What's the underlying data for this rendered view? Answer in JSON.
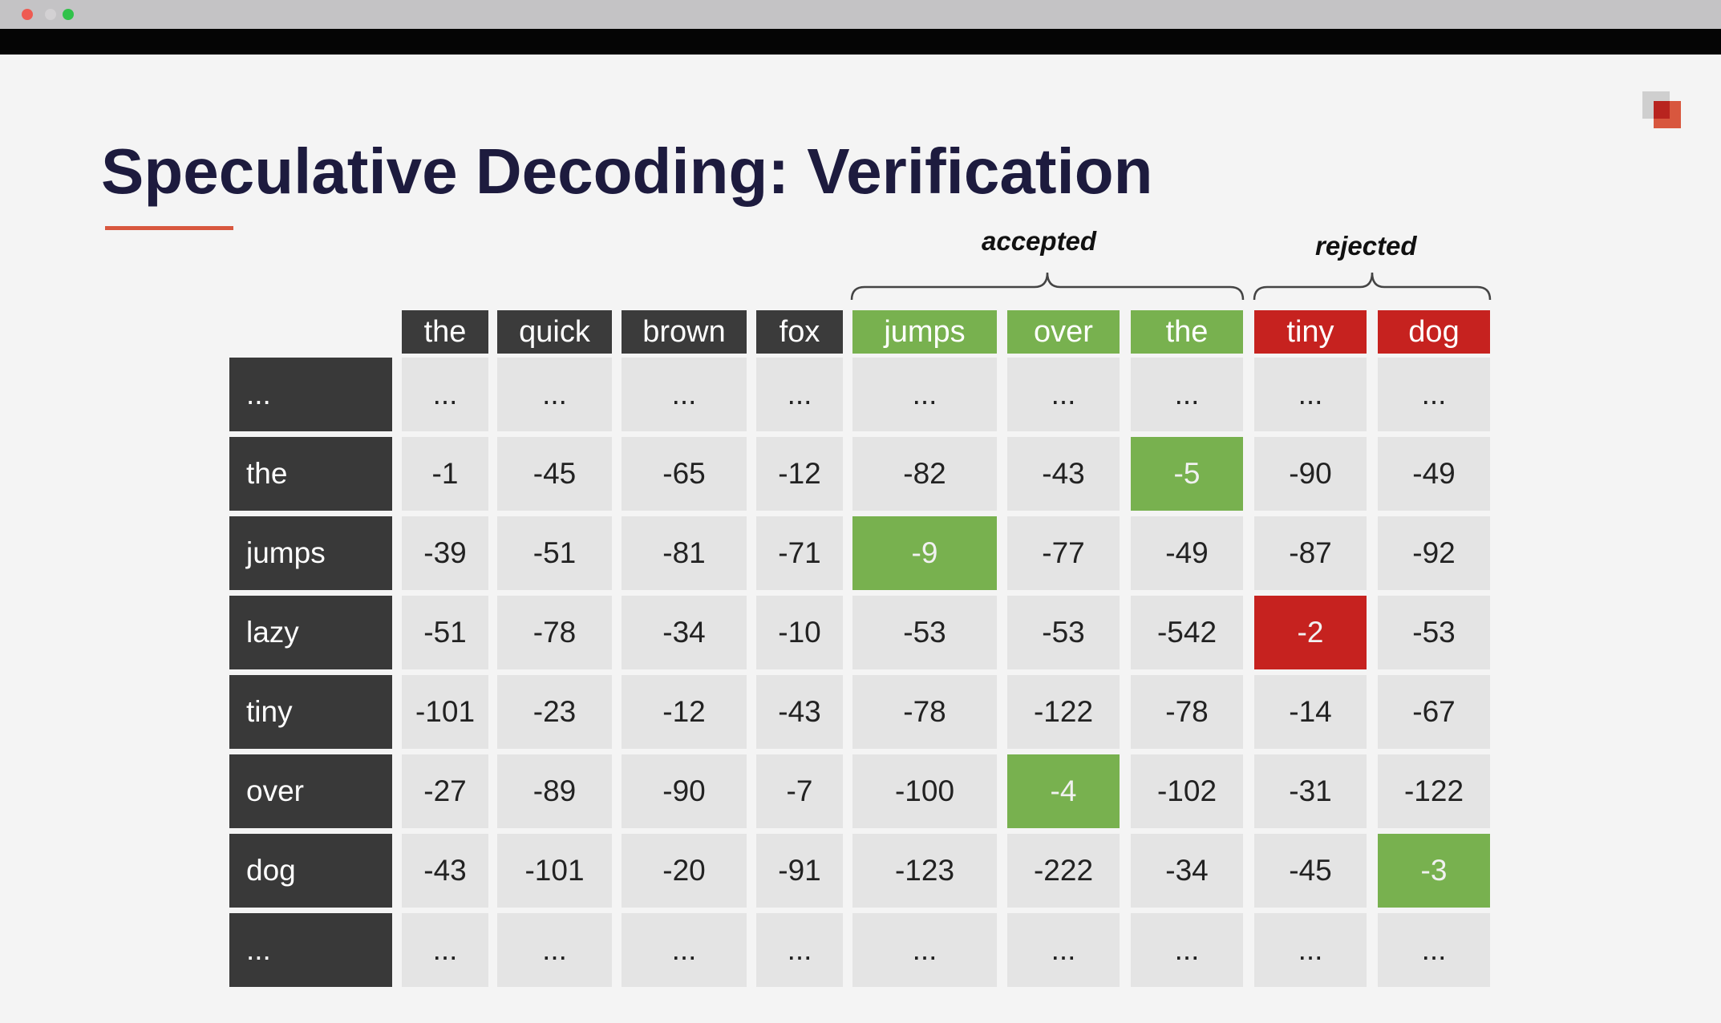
{
  "window": {
    "controls": [
      "close-button",
      "minimize-button",
      "maximize-button"
    ]
  },
  "slide": {
    "title": "Speculative Decoding: Verification",
    "accepted_label": "accepted",
    "rejected_label": "rejected",
    "colors": {
      "title": "#1d1b3e",
      "accent_underline": "#d8573e",
      "accepted": "#78b14f",
      "rejected": "#c6221f",
      "dark_header": "#3b3b3b",
      "cell": "#e4e4e4"
    },
    "logo_icon": "layered-squares-logo"
  },
  "table": {
    "columns": [
      {
        "label": "the",
        "status": "draft"
      },
      {
        "label": "quick",
        "status": "draft"
      },
      {
        "label": "brown",
        "status": "draft"
      },
      {
        "label": "fox",
        "status": "draft"
      },
      {
        "label": "jumps",
        "status": "accepted"
      },
      {
        "label": "over",
        "status": "accepted"
      },
      {
        "label": "the",
        "status": "accepted"
      },
      {
        "label": "tiny",
        "status": "rejected"
      },
      {
        "label": "dog",
        "status": "rejected"
      }
    ],
    "rows": [
      {
        "label": "...",
        "values": [
          "...",
          "...",
          "...",
          "...",
          "...",
          "...",
          "...",
          "...",
          "..."
        ],
        "highlights": [
          null,
          null,
          null,
          null,
          null,
          null,
          null,
          null,
          null
        ]
      },
      {
        "label": "the",
        "values": [
          "-1",
          "-45",
          "-65",
          "-12",
          "-82",
          "-43",
          "-5",
          "-90",
          "-49"
        ],
        "highlights": [
          null,
          null,
          null,
          null,
          null,
          null,
          "accept",
          null,
          null
        ]
      },
      {
        "label": "jumps",
        "values": [
          "-39",
          "-51",
          "-81",
          "-71",
          "-9",
          "-77",
          "-49",
          "-87",
          "-92"
        ],
        "highlights": [
          null,
          null,
          null,
          null,
          "accept",
          null,
          null,
          null,
          null
        ]
      },
      {
        "label": "lazy",
        "values": [
          "-51",
          "-78",
          "-34",
          "-10",
          "-53",
          "-53",
          "-542",
          "-2",
          "-53"
        ],
        "highlights": [
          null,
          null,
          null,
          null,
          null,
          null,
          null,
          "reject",
          null
        ]
      },
      {
        "label": "tiny",
        "values": [
          "-101",
          "-23",
          "-12",
          "-43",
          "-78",
          "-122",
          "-78",
          "-14",
          "-67"
        ],
        "highlights": [
          null,
          null,
          null,
          null,
          null,
          null,
          null,
          null,
          null
        ]
      },
      {
        "label": "over",
        "values": [
          "-27",
          "-89",
          "-90",
          "-7",
          "-100",
          "-4",
          "-102",
          "-31",
          "-122"
        ],
        "highlights": [
          null,
          null,
          null,
          null,
          null,
          "accept",
          null,
          null,
          null
        ]
      },
      {
        "label": "dog",
        "values": [
          "-43",
          "-101",
          "-20",
          "-91",
          "-123",
          "-222",
          "-34",
          "-45",
          "-3"
        ],
        "highlights": [
          null,
          null,
          null,
          null,
          null,
          null,
          null,
          null,
          "accept"
        ]
      },
      {
        "label": "...",
        "values": [
          "...",
          "...",
          "...",
          "...",
          "...",
          "...",
          "...",
          "...",
          "..."
        ],
        "highlights": [
          null,
          null,
          null,
          null,
          null,
          null,
          null,
          null,
          null
        ]
      }
    ]
  }
}
